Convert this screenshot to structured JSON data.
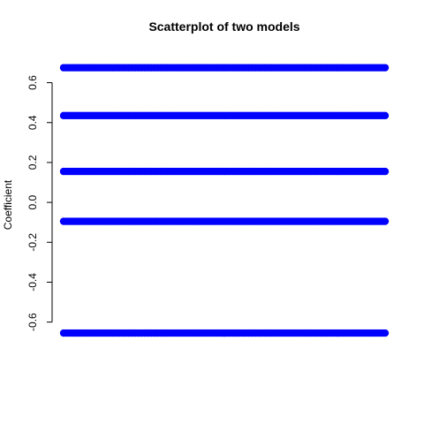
{
  "chart_data": {
    "type": "scatter",
    "title": "Scatterplot of two models",
    "xlabel": "",
    "ylabel": "Coefficient",
    "ylim": [
      -0.73,
      0.7
    ],
    "yticks": [
      -0.6,
      -0.4,
      -0.2,
      0.0,
      0.2,
      0.4,
      0.6
    ],
    "ytick_labels": [
      "-0.6",
      "-0.4",
      "-0.2",
      "0.0",
      "0.2",
      "0.4",
      "0.6"
    ],
    "x_axis_shown": false,
    "grid": false,
    "legend": "none",
    "series": [
      {
        "color": "#0000ff",
        "marker": "filled-circle",
        "y_levels": [
          0.675,
          0.435,
          0.155,
          -0.095,
          -0.655
        ],
        "x_range": [
          0,
          1
        ]
      },
      {
        "color": "#ff0000",
        "marker": "filled-circle",
        "y_levels": [
          0.675,
          0.435,
          0.155,
          -0.095,
          -0.655
        ],
        "x_range": [
          0,
          1
        ]
      }
    ]
  }
}
